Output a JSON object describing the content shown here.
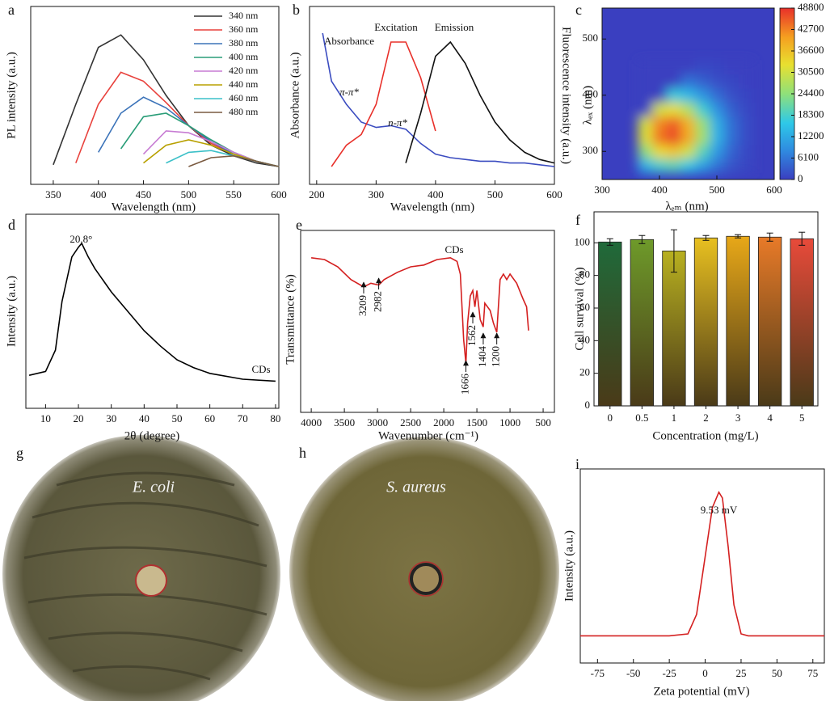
{
  "chart_data": [
    {
      "label": "a",
      "type": "line",
      "x_label": "Wavelength (nm)",
      "y_label": "PL intensity (a.u.)",
      "x": [
        350,
        375,
        400,
        425,
        450,
        475,
        500,
        525,
        550,
        575,
        600
      ],
      "xlim": [
        325,
        600
      ],
      "xticks": [
        350,
        400,
        450,
        500,
        550,
        600
      ],
      "ylim": [
        0,
        1
      ],
      "legend": "upper right",
      "series": [
        {
          "name": "340 nm",
          "color": "#333333",
          "values": [
            0.11,
            0.45,
            0.77,
            0.84,
            0.7,
            0.5,
            0.33,
            0.22,
            0.16,
            0.12,
            0.1
          ]
        },
        {
          "name": "360 nm",
          "color": "#e8413c",
          "values": [
            null,
            0.12,
            0.45,
            0.63,
            0.58,
            0.46,
            0.33,
            0.23,
            0.17,
            0.13,
            0.1
          ]
        },
        {
          "name": "380 nm",
          "color": "#3b73b9",
          "values": [
            null,
            null,
            0.18,
            0.4,
            0.49,
            0.43,
            0.33,
            0.24,
            0.17,
            0.13,
            0.1
          ]
        },
        {
          "name": "400 nm",
          "color": "#2a9d78",
          "values": [
            null,
            null,
            null,
            0.2,
            0.38,
            0.4,
            0.33,
            0.25,
            0.18,
            0.13,
            0.1
          ]
        },
        {
          "name": "420 nm",
          "color": "#c77cd3",
          "values": [
            null,
            null,
            null,
            null,
            0.17,
            0.3,
            0.29,
            0.24,
            0.18,
            0.13,
            0.1
          ]
        },
        {
          "name": "440 nm",
          "color": "#b8a000",
          "values": [
            null,
            null,
            null,
            null,
            0.12,
            0.22,
            0.25,
            0.22,
            0.17,
            0.13,
            0.1
          ]
        },
        {
          "name": "460 nm",
          "color": "#3cc0c8",
          "values": [
            null,
            null,
            null,
            null,
            null,
            0.12,
            0.18,
            0.19,
            0.16,
            0.13,
            0.1
          ]
        },
        {
          "name": "480 nm",
          "color": "#7a5a40",
          "values": [
            null,
            null,
            null,
            null,
            null,
            null,
            0.1,
            0.15,
            0.16,
            0.13,
            0.1
          ]
        }
      ]
    },
    {
      "label": "b",
      "type": "line",
      "x_label": "Wavelength (nm)",
      "y_label": "Absorbance (a.u.)",
      "y2_label": "Fluorescence intensity (a.u.)",
      "x": [
        210,
        225,
        250,
        275,
        300,
        325,
        350,
        375,
        400,
        425,
        450,
        475,
        500,
        525,
        550,
        575,
        600
      ],
      "xlim": [
        188,
        600
      ],
      "xticks": [
        200,
        300,
        400,
        500,
        600
      ],
      "ylim": [
        0,
        1
      ],
      "y2lim": [
        0,
        1
      ],
      "annotations": [
        "π-π*",
        "n-π*"
      ],
      "series": [
        {
          "name": "Absorbance",
          "color": "#3b4cc0",
          "values": [
            0.85,
            0.58,
            0.45,
            0.35,
            0.32,
            0.33,
            0.31,
            0.23,
            0.17,
            0.15,
            0.14,
            0.13,
            0.13,
            0.12,
            0.12,
            0.11,
            0.1
          ]
        },
        {
          "name": "Excitation",
          "color": "#e8302a",
          "axis": "y2",
          "values": [
            null,
            0.1,
            0.22,
            0.28,
            0.45,
            0.8,
            0.8,
            0.6,
            0.3,
            null,
            null,
            null,
            null,
            null,
            null,
            null,
            null
          ]
        },
        {
          "name": "Emission",
          "color": "#111111",
          "axis": "y2",
          "values": [
            null,
            null,
            null,
            null,
            null,
            null,
            0.12,
            0.4,
            0.72,
            0.8,
            0.68,
            0.5,
            0.35,
            0.25,
            0.18,
            0.14,
            0.12
          ]
        }
      ]
    },
    {
      "label": "c",
      "type": "heatmap",
      "x_label": "λₑₘ (nm)",
      "y_label": "λₑₓ (nm)",
      "x": [
        375,
        400,
        425,
        450,
        475,
        500,
        525,
        550
      ],
      "y": [
        275,
        300,
        325,
        350,
        375,
        400,
        425,
        450
      ],
      "z": [
        [
          13400,
          18500,
          20000,
          16700,
          10900,
          5600,
          2200,
          700
        ],
        [
          24100,
          33300,
          35900,
          30100,
          19700,
          10000,
          4000,
          1200
        ],
        [
          31700,
          43900,
          47300,
          39700,
          26000,
          13200,
          5200,
          1600
        ],
        [
          30800,
          42600,
          45900,
          38500,
          25200,
          12800,
          5100,
          1600
        ],
        [
          0,
          30400,
          32700,
          27500,
          18000,
          9100,
          3600,
          1100
        ],
        [
          0,
          0,
          17100,
          14300,
          9400,
          4800,
          1900,
          600
        ],
        [
          0,
          0,
          0,
          5500,
          3600,
          1800,
          700,
          200
        ],
        [
          0,
          0,
          0,
          0,
          1000,
          500,
          200,
          100
        ]
      ],
      "xlim": [
        300,
        600
      ],
      "ylim": [
        250,
        555
      ],
      "xticks": [
        300,
        400,
        500,
        600
      ],
      "yticks": [
        300,
        400,
        500
      ],
      "clim": [
        0,
        48800
      ],
      "colorbar_ticks": [
        0,
        6100,
        12200,
        18300,
        24400,
        30500,
        36600,
        42700,
        48800
      ]
    },
    {
      "label": "d",
      "type": "line",
      "x_label": "2θ (degree)",
      "y_label": "Intensity (a.u.)",
      "x": [
        5,
        10,
        13,
        15,
        18,
        20,
        21,
        23,
        25,
        30,
        35,
        40,
        45,
        50,
        55,
        60,
        70,
        80
      ],
      "xlim": [
        4,
        81
      ],
      "xticks": [
        10,
        20,
        30,
        40,
        50,
        60,
        70,
        80
      ],
      "ylim": [
        0,
        1
      ],
      "peak": {
        "value": 20.8,
        "label": "20.8°"
      },
      "series": [
        {
          "name": "CDs",
          "color": "#000000",
          "values": [
            0.17,
            0.19,
            0.3,
            0.55,
            0.78,
            0.83,
            0.85,
            0.78,
            0.72,
            0.6,
            0.5,
            0.4,
            0.32,
            0.25,
            0.21,
            0.18,
            0.15,
            0.14
          ]
        }
      ]
    },
    {
      "label": "e",
      "type": "line",
      "x_label": "Wavenumber (cm⁻¹)",
      "y_label": "Transmittance (%)",
      "x": [
        4000,
        3800,
        3600,
        3400,
        3209,
        3100,
        2982,
        2900,
        2700,
        2500,
        2300,
        2100,
        1900,
        1800,
        1750,
        1700,
        1666,
        1640,
        1600,
        1562,
        1530,
        1500,
        1450,
        1404,
        1380,
        1300,
        1250,
        1200,
        1150,
        1100,
        1050,
        1000,
        900,
        800,
        750,
        720
      ],
      "xlim": [
        4160,
        330
      ],
      "xticks": [
        4000,
        3500,
        3000,
        2500,
        2000,
        1500,
        1000,
        500
      ],
      "ylim": [
        0,
        1
      ],
      "peaks": [
        3209,
        2982,
        1666,
        1562,
        1404,
        1200
      ],
      "series": [
        {
          "name": "CDs",
          "color": "#d42020",
          "values": [
            0.85,
            0.84,
            0.8,
            0.73,
            0.69,
            0.71,
            0.7,
            0.73,
            0.77,
            0.8,
            0.81,
            0.84,
            0.85,
            0.83,
            0.76,
            0.4,
            0.27,
            0.49,
            0.64,
            0.67,
            0.58,
            0.67,
            0.51,
            0.47,
            0.6,
            0.56,
            0.49,
            0.44,
            0.73,
            0.76,
            0.73,
            0.76,
            0.71,
            0.62,
            0.58,
            0.45
          ]
        }
      ]
    },
    {
      "label": "f",
      "type": "bar",
      "x_label": "Concentration (mg/L)",
      "y_label": "Cell survival (%)",
      "categories": [
        "0",
        "0.5",
        "1",
        "2",
        "3",
        "4",
        "5"
      ],
      "values": [
        100.5,
        102,
        95,
        103,
        104,
        103.5,
        102.5
      ],
      "errors": [
        2,
        2.5,
        13,
        1.5,
        1,
        2.5,
        4
      ],
      "colors": [
        "#1f6a3a",
        "#6e9a2a",
        "#b8b020",
        "#e8c020",
        "#e8a818",
        "#e87a28",
        "#e84a3a"
      ],
      "ylim": [
        0,
        119
      ],
      "yticks": [
        0,
        20,
        40,
        60,
        80,
        100
      ]
    },
    {
      "label": "i",
      "type": "line",
      "x_label": "Zeta potential (mV)",
      "y_label": "Intensity (a.u.)",
      "x": [
        -87,
        -50,
        -25,
        -12,
        -6,
        0,
        5,
        9.53,
        12,
        16,
        20,
        25,
        30,
        50,
        83
      ],
      "xlim": [
        -87,
        83
      ],
      "xticks": [
        -75,
        -50,
        -25,
        0,
        25,
        50,
        75
      ],
      "ylim": [
        0,
        1
      ],
      "peak": {
        "value": 9.53,
        "label": "9.53 mV"
      },
      "series": [
        {
          "color": "#d42020",
          "values": [
            0.14,
            0.14,
            0.14,
            0.15,
            0.25,
            0.55,
            0.8,
            0.88,
            0.85,
            0.6,
            0.3,
            0.15,
            0.14,
            0.14,
            0.14
          ]
        }
      ]
    }
  ],
  "images": [
    {
      "label": "g",
      "caption": "E. coli"
    },
    {
      "label": "h",
      "caption": "S. aureus"
    }
  ]
}
